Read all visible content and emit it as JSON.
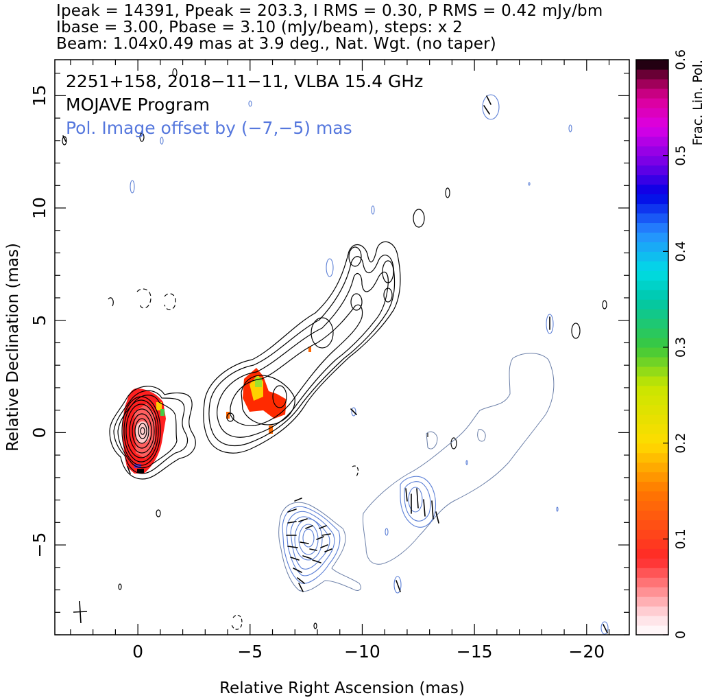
{
  "header": {
    "line1": "Ipeak = 14391, Ppeak = 203.3, I RMS = 0.30, P RMS = 0.42 mJy/bm",
    "line2": "Ibase = 3.00, Pbase = 3.10 (mJy/beam), steps: x 2",
    "line3": "Beam: 1.04x0.49 mas at 3.9 deg., Nat. Wgt. (no taper)"
  },
  "overlay": {
    "source_line": "2251+158, 2018−11−11, VLBA 15.4 GHz",
    "program_line": "MOJAVE Program",
    "pol_offset_line": "Pol. Image offset by (−7,−5) mas"
  },
  "colors": {
    "total_intensity_contours": "#000000",
    "pol_contours": "#5b7fd6",
    "pol_offset_text": "#5577dd"
  },
  "chart_data": {
    "type": "heatmap",
    "description_kind": "VLBA radio map: total-intensity contours with fractional linear polarization colour",
    "xlabel": "Relative Right Ascension (mas)",
    "ylabel": "Relative Declination (mas)",
    "xlim": [
      3.7,
      -21.9
    ],
    "ylim": [
      -9.0,
      16.6
    ],
    "xticks": [
      {
        "value": 0,
        "label": "0"
      },
      {
        "value": -5,
        "label": "−5"
      },
      {
        "value": -10,
        "label": "−10"
      },
      {
        "value": -15,
        "label": "−15"
      },
      {
        "value": -20,
        "label": "−20"
      }
    ],
    "yticks": [
      {
        "value": -5,
        "label": "−5"
      },
      {
        "value": 0,
        "label": "0"
      },
      {
        "value": 5,
        "label": "5"
      },
      {
        "value": 10,
        "label": "10"
      },
      {
        "value": 15,
        "label": "15"
      }
    ],
    "core": {
      "ra": 0.2,
      "dec": 0.0,
      "contour_levels": 10
    },
    "jet_knots": [
      {
        "ra": -5.5,
        "dec": 1.8
      },
      {
        "ra": -9.0,
        "dec": 4.0
      },
      {
        "ra": -11.0,
        "dec": 7.0
      }
    ],
    "pol_offset_mas": [
      -7,
      -5
    ],
    "colorbar": {
      "label": "Frac. Lin. Pol.",
      "min": 0,
      "max": 0.6,
      "ticks": [
        {
          "value": 0,
          "label": "0"
        },
        {
          "value": 0.1,
          "label": "0.1"
        },
        {
          "value": 0.2,
          "label": "0.2"
        },
        {
          "value": 0.3,
          "label": "0.3"
        },
        {
          "value": 0.4,
          "label": "0.4"
        },
        {
          "value": 0.5,
          "label": "0.5"
        },
        {
          "value": 0.6,
          "label": "0.6"
        }
      ]
    }
  }
}
